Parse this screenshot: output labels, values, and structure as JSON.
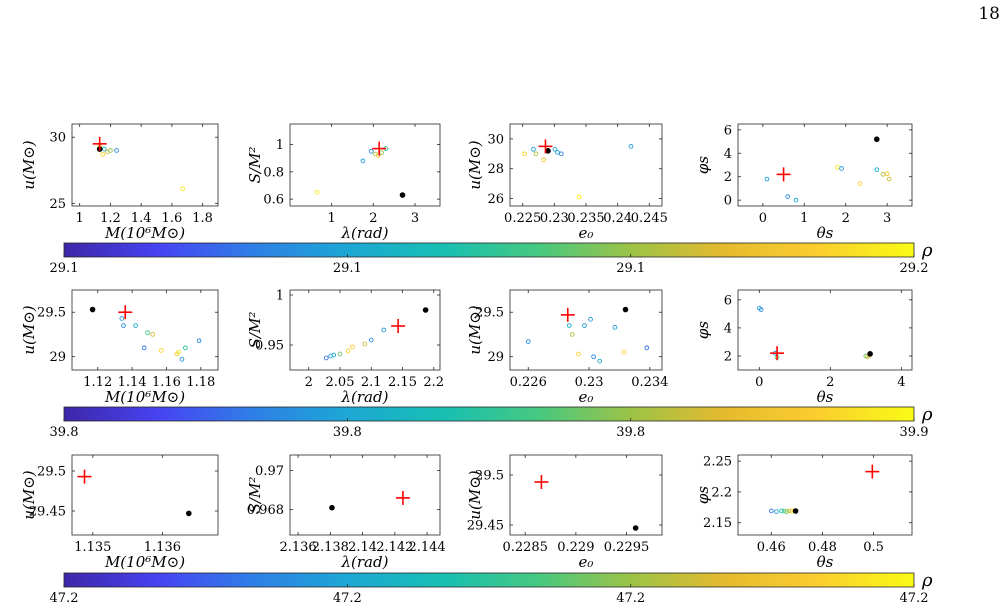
{
  "page": {
    "number": "18"
  },
  "chart_data": [
    {
      "type": "scatter",
      "row": 0,
      "xlabel": "M(10⁶M⊙)",
      "ylabel": "u(M⊙)",
      "xlim": [
        0.95,
        1.9
      ],
      "ylim": [
        24.8,
        31
      ],
      "xticks": [
        1,
        1.2,
        1.4,
        1.6,
        1.8
      ],
      "xticklabels": [
        "1",
        "1.2",
        "1.4",
        "1.6",
        "1.8"
      ],
      "yticks": [
        25,
        30
      ],
      "yticklabels": [
        "25",
        "30"
      ],
      "points": [
        {
          "x": 1.13,
          "y": 29.3,
          "c": 0.95
        },
        {
          "x": 1.15,
          "y": 28.7,
          "c": 0.9
        },
        {
          "x": 1.18,
          "y": 28.9,
          "c": 0.75
        },
        {
          "x": 1.2,
          "y": 29.0,
          "c": 0.65
        },
        {
          "x": 1.16,
          "y": 29.1,
          "c": 0.4
        },
        {
          "x": 1.24,
          "y": 29.0,
          "c": 0.25
        },
        {
          "x": 1.67,
          "y": 26.1,
          "c": 0.95
        }
      ],
      "truth": {
        "x": 1.13,
        "y": 29.5
      },
      "best": {
        "x": 1.13,
        "y": 29.1
      }
    },
    {
      "type": "scatter",
      "row": 0,
      "xlabel": "λ(rad)",
      "ylabel": "S/M²",
      "xlim": [
        0,
        3.6
      ],
      "ylim": [
        0.55,
        1.15
      ],
      "xticks": [
        1,
        2,
        3
      ],
      "xticklabels": [
        "1",
        "2",
        "3"
      ],
      "yticks": [
        0.6,
        0.8,
        1
      ],
      "yticklabels": [
        "0.6",
        "0.8",
        "1"
      ],
      "points": [
        {
          "x": 0.65,
          "y": 0.65,
          "c": 0.95
        },
        {
          "x": 1.75,
          "y": 0.88,
          "c": 0.3
        },
        {
          "x": 1.95,
          "y": 0.95,
          "c": 0.25
        },
        {
          "x": 2.05,
          "y": 0.93,
          "c": 0.7
        },
        {
          "x": 2.12,
          "y": 0.92,
          "c": 0.85
        },
        {
          "x": 2.2,
          "y": 0.94,
          "c": 0.65
        },
        {
          "x": 2.3,
          "y": 0.97,
          "c": 0.5
        }
      ],
      "truth": {
        "x": 2.14,
        "y": 0.97
      },
      "best": {
        "x": 2.7,
        "y": 0.63
      }
    },
    {
      "type": "scatter",
      "row": 0,
      "xlabel": "e₀",
      "ylabel": "u(M⊙)",
      "xlim": [
        0.223,
        0.247
      ],
      "ylim": [
        25.5,
        31
      ],
      "xticks": [
        0.225,
        0.23,
        0.235,
        0.24,
        0.245
      ],
      "xticklabels": [
        "0.225",
        "0.23",
        "0.235",
        "0.24",
        "0.245"
      ],
      "yticks": [
        26,
        28,
        30
      ],
      "yticklabels": [
        "26",
        "28",
        "30"
      ],
      "points": [
        {
          "x": 0.2253,
          "y": 29.0,
          "c": 0.9
        },
        {
          "x": 0.2267,
          "y": 29.3,
          "c": 0.3
        },
        {
          "x": 0.2271,
          "y": 29.0,
          "c": 0.7
        },
        {
          "x": 0.2283,
          "y": 28.6,
          "c": 0.85
        },
        {
          "x": 0.2301,
          "y": 29.3,
          "c": 0.35
        },
        {
          "x": 0.2305,
          "y": 29.1,
          "c": 0.3
        },
        {
          "x": 0.2311,
          "y": 29.0,
          "c": 0.25
        },
        {
          "x": 0.2339,
          "y": 26.1,
          "c": 0.95
        },
        {
          "x": 0.2421,
          "y": 29.5,
          "c": 0.3
        }
      ],
      "truth": {
        "x": 0.2286,
        "y": 29.5
      },
      "best": {
        "x": 0.229,
        "y": 29.2
      }
    },
    {
      "type": "scatter",
      "row": 0,
      "xlabel": "θs",
      "ylabel": "φs",
      "xlim": [
        -0.6,
        3.6
      ],
      "ylim": [
        -0.5,
        6.5
      ],
      "xticks": [
        0,
        1,
        2,
        3
      ],
      "xticklabels": [
        "0",
        "1",
        "2",
        "3"
      ],
      "yticks": [
        0,
        2,
        4,
        6
      ],
      "yticklabels": [
        "0",
        "2",
        "4",
        "6"
      ],
      "points": [
        {
          "x": 0.1,
          "y": 1.8,
          "c": 0.3
        },
        {
          "x": 0.6,
          "y": 0.3,
          "c": 0.25
        },
        {
          "x": 0.8,
          "y": 0.0,
          "c": 0.35
        },
        {
          "x": 1.8,
          "y": 2.8,
          "c": 0.95
        },
        {
          "x": 1.9,
          "y": 2.7,
          "c": 0.3
        },
        {
          "x": 2.35,
          "y": 1.4,
          "c": 0.9
        },
        {
          "x": 2.75,
          "y": 2.6,
          "c": 0.35
        },
        {
          "x": 2.9,
          "y": 2.2,
          "c": 0.7
        },
        {
          "x": 3.0,
          "y": 2.25,
          "c": 0.85
        },
        {
          "x": 3.05,
          "y": 1.8,
          "c": 0.75
        }
      ],
      "truth": {
        "x": 0.5,
        "y": 2.2
      },
      "best": {
        "x": 2.75,
        "y": 5.2
      }
    },
    {
      "type": "scatter",
      "row": 1,
      "xlabel": "M(10⁶M⊙)",
      "ylabel": "u(M⊙)",
      "xlim": [
        1.105,
        1.19
      ],
      "ylim": [
        28.85,
        29.75
      ],
      "xticks": [
        1.12,
        1.14,
        1.16,
        1.18
      ],
      "xticklabels": [
        "1.12",
        "1.14",
        "1.16",
        "1.18"
      ],
      "yticks": [
        29,
        29.5
      ],
      "yticklabels": [
        "29",
        "29.5"
      ],
      "points": [
        {
          "x": 1.134,
          "y": 29.43,
          "c": 0.3
        },
        {
          "x": 1.135,
          "y": 29.35,
          "c": 0.25
        },
        {
          "x": 1.142,
          "y": 29.35,
          "c": 0.35
        },
        {
          "x": 1.147,
          "y": 29.1,
          "c": 0.2
        },
        {
          "x": 1.149,
          "y": 29.27,
          "c": 0.55
        },
        {
          "x": 1.152,
          "y": 29.25,
          "c": 0.75
        },
        {
          "x": 1.157,
          "y": 29.07,
          "c": 0.9
        },
        {
          "x": 1.166,
          "y": 29.03,
          "c": 0.85
        },
        {
          "x": 1.167,
          "y": 29.05,
          "c": 0.95
        },
        {
          "x": 1.169,
          "y": 28.97,
          "c": 0.3
        },
        {
          "x": 1.171,
          "y": 29.1,
          "c": 0.5
        },
        {
          "x": 1.179,
          "y": 29.18,
          "c": 0.25
        }
      ],
      "truth": {
        "x": 1.136,
        "y": 29.5
      },
      "best": {
        "x": 1.117,
        "y": 29.53
      }
    },
    {
      "type": "scatter",
      "row": 1,
      "xlabel": "λ(rad)",
      "ylabel": "S/M²",
      "xlim": [
        1.97,
        2.21
      ],
      "ylim": [
        0.925,
        1.005
      ],
      "xticks": [
        2,
        2.05,
        2.1,
        2.15,
        2.2
      ],
      "xticklabels": [
        "2",
        "2.05",
        "2.1",
        "2.15",
        "2.2"
      ],
      "yticks": [
        0.95,
        1
      ],
      "yticklabels": [
        "0.95",
        "1"
      ],
      "points": [
        {
          "x": 2.028,
          "y": 0.937,
          "c": 0.2
        },
        {
          "x": 2.035,
          "y": 0.939,
          "c": 0.3
        },
        {
          "x": 2.04,
          "y": 0.94,
          "c": 0.35
        },
        {
          "x": 2.05,
          "y": 0.941,
          "c": 0.6
        },
        {
          "x": 2.063,
          "y": 0.944,
          "c": 0.9
        },
        {
          "x": 2.07,
          "y": 0.948,
          "c": 0.85
        },
        {
          "x": 2.09,
          "y": 0.951,
          "c": 0.75
        },
        {
          "x": 2.1,
          "y": 0.955,
          "c": 0.25
        },
        {
          "x": 2.12,
          "y": 0.965,
          "c": 0.3
        }
      ],
      "truth": {
        "x": 2.143,
        "y": 0.969
      },
      "best": {
        "x": 2.187,
        "y": 0.985
      }
    },
    {
      "type": "scatter",
      "row": 1,
      "xlabel": "e₀",
      "ylabel": "u(M⊙)",
      "xlim": [
        0.2248,
        0.2348
      ],
      "ylim": [
        28.85,
        29.75
      ],
      "xticks": [
        0.226,
        0.23,
        0.234
      ],
      "xticklabels": [
        "0.226",
        "0.23",
        "0.234"
      ],
      "yticks": [
        29,
        29.5
      ],
      "yticklabels": [
        "29",
        "29.5"
      ],
      "points": [
        {
          "x": 0.226,
          "y": 29.17,
          "c": 0.25
        },
        {
          "x": 0.2287,
          "y": 29.35,
          "c": 0.35
        },
        {
          "x": 0.2289,
          "y": 29.25,
          "c": 0.7
        },
        {
          "x": 0.2293,
          "y": 29.03,
          "c": 0.9
        },
        {
          "x": 0.2297,
          "y": 29.35,
          "c": 0.3
        },
        {
          "x": 0.2301,
          "y": 29.42,
          "c": 0.3
        },
        {
          "x": 0.2303,
          "y": 29.0,
          "c": 0.25
        },
        {
          "x": 0.2307,
          "y": 28.95,
          "c": 0.35
        },
        {
          "x": 0.2317,
          "y": 29.33,
          "c": 0.3
        },
        {
          "x": 0.2323,
          "y": 29.05,
          "c": 0.9
        },
        {
          "x": 0.2338,
          "y": 29.1,
          "c": 0.2
        }
      ],
      "truth": {
        "x": 0.2286,
        "y": 29.47
      },
      "best": {
        "x": 0.2324,
        "y": 29.53
      }
    },
    {
      "type": "scatter",
      "row": 1,
      "xlabel": "θs",
      "ylabel": "φs",
      "xlim": [
        -0.6,
        4.3
      ],
      "ylim": [
        1.0,
        6.7
      ],
      "xticks": [
        0,
        2,
        4
      ],
      "xticklabels": [
        "0",
        "2",
        "4"
      ],
      "yticks": [
        2,
        4,
        6
      ],
      "yticklabels": [
        "2",
        "4",
        "6"
      ],
      "points": [
        {
          "x": 0.0,
          "y": 5.4,
          "c": 0.3
        },
        {
          "x": 0.05,
          "y": 5.3,
          "c": 0.25
        },
        {
          "x": 0.45,
          "y": 2.2,
          "c": 0.3
        },
        {
          "x": 0.5,
          "y": 1.9,
          "c": 0.6
        },
        {
          "x": 3.0,
          "y": 2.0,
          "c": 0.6
        },
        {
          "x": 3.05,
          "y": 1.95,
          "c": 0.75
        },
        {
          "x": 3.1,
          "y": 2.05,
          "c": 0.85
        }
      ],
      "truth": {
        "x": 0.5,
        "y": 2.2
      },
      "best": {
        "x": 3.12,
        "y": 2.15
      }
    },
    {
      "type": "scatter",
      "row": 2,
      "xlabel": "M(10⁶M⊙)",
      "ylabel": "u(M⊙)",
      "xlim": [
        1.1347,
        1.1368
      ],
      "ylim": [
        29.42,
        29.52
      ],
      "xticks": [
        1.135,
        1.136
      ],
      "xticklabels": [
        "1.135",
        "1.136"
      ],
      "yticks": [
        29.45,
        29.5
      ],
      "yticklabels": [
        "29.45",
        "29.5"
      ],
      "points": [],
      "truth": {
        "x": 1.13488,
        "y": 29.493
      },
      "best": {
        "x": 1.13638,
        "y": 29.447
      }
    },
    {
      "type": "scatter",
      "row": 2,
      "xlabel": "λ(rad)",
      "ylabel": "S/M²",
      "xlim": [
        2.1355,
        2.1448
      ],
      "ylim": [
        0.9667,
        0.9708
      ],
      "xticks": [
        2.136,
        2.138,
        2.14,
        2.142,
        2.144
      ],
      "xticklabels": [
        "2.136",
        "2.138",
        "2.14",
        "2.142",
        "2.144"
      ],
      "yticks": [
        0.968,
        0.97
      ],
      "yticklabels": [
        "0.968",
        "0.97"
      ],
      "points": [],
      "truth": {
        "x": 2.1425,
        "y": 0.9686
      },
      "best": {
        "x": 2.1381,
        "y": 0.9681
      }
    },
    {
      "type": "scatter",
      "row": 2,
      "xlabel": "e₀",
      "ylabel": "u(M⊙)",
      "xlim": [
        0.22835,
        0.22985
      ],
      "ylim": [
        29.44,
        29.52
      ],
      "xticks": [
        0.2285,
        0.229,
        0.2295
      ],
      "xticklabels": [
        "0.2285",
        "0.229",
        "0.2295"
      ],
      "yticks": [
        29.45,
        29.5
      ],
      "yticklabels": [
        "29.45",
        "29.5"
      ],
      "points": [],
      "truth": {
        "x": 0.22866,
        "y": 29.493
      },
      "best": {
        "x": 0.22959,
        "y": 29.447
      }
    },
    {
      "type": "scatter",
      "row": 2,
      "xlabel": "θs",
      "ylabel": "φs",
      "xlim": [
        0.447,
        0.515
      ],
      "ylim": [
        2.13,
        2.26
      ],
      "xticks": [
        0.46,
        0.48,
        0.5
      ],
      "xticklabels": [
        "0.46",
        "0.48",
        "0.5"
      ],
      "yticks": [
        2.15,
        2.2,
        2.25
      ],
      "yticklabels": [
        "2.15",
        "2.2",
        "2.25"
      ],
      "points": [
        {
          "x": 0.46,
          "y": 2.169,
          "c": 0.2
        },
        {
          "x": 0.462,
          "y": 2.168,
          "c": 0.3
        },
        {
          "x": 0.464,
          "y": 2.169,
          "c": 0.45
        },
        {
          "x": 0.465,
          "y": 2.169,
          "c": 0.55
        },
        {
          "x": 0.466,
          "y": 2.168,
          "c": 0.6
        },
        {
          "x": 0.467,
          "y": 2.169,
          "c": 0.75
        },
        {
          "x": 0.468,
          "y": 2.169,
          "c": 0.85
        },
        {
          "x": 0.469,
          "y": 2.169,
          "c": 0.95
        }
      ],
      "truth": {
        "x": 0.4995,
        "y": 2.233
      },
      "best": {
        "x": 0.4695,
        "y": 2.169
      }
    }
  ],
  "colorbars": [
    {
      "label": "ρ",
      "ticks": [
        "29.1",
        "29.1",
        "29.1",
        "29.2"
      ]
    },
    {
      "label": "ρ",
      "ticks": [
        "39.8",
        "39.8",
        "39.8",
        "39.9"
      ]
    },
    {
      "label": "ρ",
      "ticks": [
        "47.2",
        "47.2",
        "47.2",
        "47.2"
      ]
    }
  ],
  "colors": {
    "colormap": [
      "#3e26a8",
      "#4743f2",
      "#2f7fe6",
      "#1ca7d5",
      "#18bfb3",
      "#45c882",
      "#9cc346",
      "#e6ba2e",
      "#fbcf2e",
      "#f9fb15"
    ],
    "truth_marker": "#ff0000",
    "best_marker": "#000000"
  }
}
